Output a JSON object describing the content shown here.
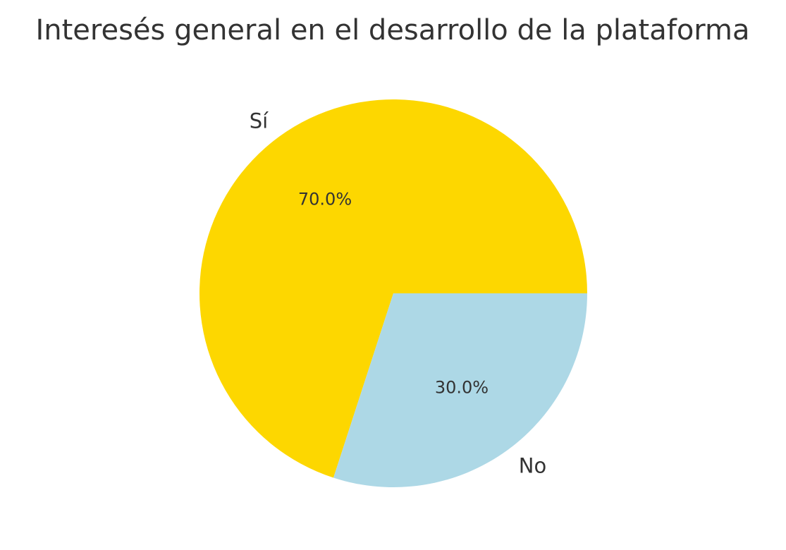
{
  "chart_data": {
    "type": "pie",
    "title": "Interesés general en el desarrollo de la plataforma",
    "categories": [
      "Sí",
      "No"
    ],
    "values": [
      70.0,
      30.0
    ],
    "percent_labels": [
      "70.0%",
      "30.0%"
    ],
    "colors": [
      "#FDD700",
      "#ADD8E6"
    ],
    "start_angle_deg": 0,
    "direction": "counterclockwise",
    "legend": "none"
  }
}
